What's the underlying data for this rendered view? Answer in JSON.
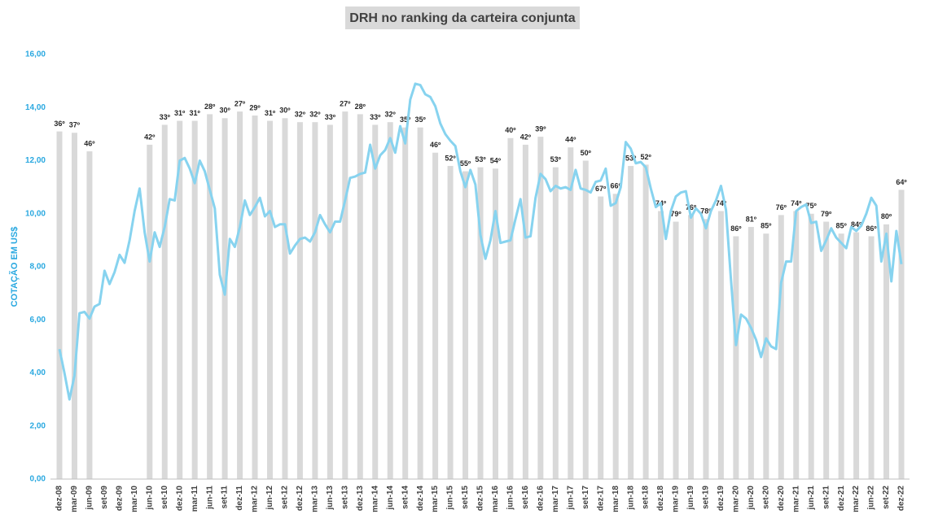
{
  "chart_data": {
    "type": "bar-line",
    "title": "DRH no ranking da carteira conjunta",
    "y_label": "COTAÇÃO EM US$",
    "ylim": [
      0,
      16
    ],
    "yticks": [
      {
        "value": 0,
        "label": "0,00"
      },
      {
        "value": 2,
        "label": "2,00"
      },
      {
        "value": 4,
        "label": "4,00"
      },
      {
        "value": 6,
        "label": "6,00"
      },
      {
        "value": 8,
        "label": "8,00"
      },
      {
        "value": 10,
        "label": "10,00"
      },
      {
        "value": 12,
        "label": "12,00"
      },
      {
        "value": 14,
        "label": "14,00"
      },
      {
        "value": 16,
        "label": "16,00"
      }
    ],
    "categories": [
      "dez-08",
      null,
      null,
      "mar-09",
      null,
      null,
      "jun-09",
      null,
      null,
      "set-09",
      null,
      null,
      "dez-09",
      null,
      null,
      "mar-10",
      null,
      null,
      "jun-10",
      null,
      null,
      "set-10",
      null,
      null,
      "dez-10",
      null,
      null,
      "mar-11",
      null,
      null,
      "jun-11",
      null,
      null,
      "set-11",
      null,
      null,
      "dez-11",
      null,
      null,
      "mar-12",
      null,
      null,
      "jun-12",
      null,
      null,
      "set-12",
      null,
      null,
      "dez-12",
      null,
      null,
      "mar-13",
      null,
      null,
      "jun-13",
      null,
      null,
      "set-13",
      null,
      null,
      "dez-13",
      null,
      null,
      "mar-14",
      null,
      null,
      "jun-14",
      null,
      null,
      "set-14",
      null,
      null,
      "dez-14",
      null,
      null,
      "mar-15",
      null,
      null,
      "jun-15",
      null,
      null,
      "set-15",
      null,
      null,
      "dez-15",
      null,
      null,
      "mar-16",
      null,
      null,
      "jun-16",
      null,
      null,
      "set-16",
      null,
      null,
      "dez-16",
      null,
      null,
      "mar-17",
      null,
      null,
      "jun-17",
      null,
      null,
      "set-17",
      null,
      null,
      "dez-17",
      null,
      null,
      "mar-18",
      null,
      null,
      "jun-18",
      null,
      null,
      "set-18",
      null,
      null,
      "dez-18",
      null,
      null,
      "mar-19",
      null,
      null,
      "jun-19",
      null,
      null,
      "set-19",
      null,
      null,
      "dez-19",
      null,
      null,
      "mar-20",
      null,
      null,
      "jun-20",
      null,
      null,
      "set-20",
      null,
      null,
      "dez-20",
      null,
      null,
      "mar-21",
      null,
      null,
      "jun-21",
      null,
      null,
      "set-21",
      null,
      null,
      "dez-21",
      null,
      null,
      "mar-22",
      null,
      null,
      "jun-22",
      null,
      null,
      "set-22",
      null,
      null,
      "dez-22"
    ],
    "series": [
      {
        "type": "bar",
        "color": "#d9d9d9",
        "values": [
          13.1,
          null,
          null,
          13.05,
          null,
          null,
          12.35,
          null,
          null,
          null,
          null,
          null,
          null,
          null,
          null,
          null,
          null,
          null,
          12.6,
          null,
          null,
          13.35,
          null,
          null,
          13.5,
          null,
          null,
          13.5,
          null,
          null,
          13.75,
          null,
          null,
          13.6,
          null,
          null,
          13.85,
          null,
          null,
          13.7,
          null,
          null,
          13.5,
          null,
          null,
          13.6,
          null,
          null,
          13.45,
          null,
          null,
          13.45,
          null,
          null,
          13.35,
          null,
          null,
          13.85,
          null,
          null,
          13.75,
          null,
          null,
          13.35,
          null,
          null,
          13.45,
          null,
          null,
          13.25,
          null,
          null,
          13.25,
          null,
          null,
          12.3,
          null,
          null,
          11.8,
          null,
          null,
          11.6,
          null,
          null,
          11.75,
          null,
          null,
          11.7,
          null,
          null,
          12.85,
          null,
          null,
          12.6,
          null,
          null,
          12.9,
          null,
          null,
          11.75,
          null,
          null,
          12.5,
          null,
          null,
          12.0,
          null,
          null,
          10.65,
          null,
          null,
          10.75,
          null,
          null,
          11.8,
          null,
          null,
          11.85,
          null,
          null,
          10.1,
          null,
          null,
          9.7,
          null,
          null,
          9.95,
          null,
          null,
          9.8,
          null,
          null,
          10.1,
          null,
          null,
          9.15,
          null,
          null,
          9.5,
          null,
          null,
          9.25,
          null,
          null,
          9.95,
          null,
          null,
          10.1,
          null,
          null,
          10.0,
          null,
          null,
          9.7,
          null,
          null,
          9.25,
          null,
          null,
          9.3,
          null,
          null,
          9.15,
          null,
          null,
          9.6,
          null,
          null,
          10.9
        ],
        "labels": [
          "36º",
          null,
          null,
          "37º",
          null,
          null,
          "46º",
          null,
          null,
          null,
          null,
          null,
          null,
          null,
          null,
          null,
          null,
          null,
          "42º",
          null,
          null,
          "33º",
          null,
          null,
          "31º",
          null,
          null,
          "31º",
          null,
          null,
          "28º",
          null,
          null,
          "30º",
          null,
          null,
          "27º",
          null,
          null,
          "29º",
          null,
          null,
          "31º",
          null,
          null,
          "30º",
          null,
          null,
          "32º",
          null,
          null,
          "32º",
          null,
          null,
          "33º",
          null,
          null,
          "27º",
          null,
          null,
          "28º",
          null,
          null,
          "33º",
          null,
          null,
          "32º",
          null,
          null,
          "35º",
          null,
          null,
          "35º",
          null,
          null,
          "46º",
          null,
          null,
          "52º",
          null,
          null,
          "55º",
          null,
          null,
          "53º",
          null,
          null,
          "54º",
          null,
          null,
          "40º",
          null,
          null,
          "42º",
          null,
          null,
          "39º",
          null,
          null,
          "53º",
          null,
          null,
          "44º",
          null,
          null,
          "50º",
          null,
          null,
          "67º",
          null,
          null,
          "66º",
          null,
          null,
          "53º",
          null,
          null,
          "52º",
          null,
          null,
          "74º",
          null,
          null,
          "79º",
          null,
          null,
          "76º",
          null,
          null,
          "78º",
          null,
          null,
          "74º",
          null,
          null,
          "86º",
          null,
          null,
          "81º",
          null,
          null,
          "85º",
          null,
          null,
          "76º",
          null,
          null,
          "74º",
          null,
          null,
          "75º",
          null,
          null,
          "79º",
          null,
          null,
          "85º",
          null,
          null,
          "84º",
          null,
          null,
          "86º",
          null,
          null,
          "80º",
          null,
          null,
          "64º"
        ]
      },
      {
        "type": "line",
        "color": "#87d3ef",
        "values": [
          4.9,
          4.0,
          3.0,
          3.9,
          6.25,
          6.3,
          6.05,
          6.5,
          6.6,
          7.85,
          7.35,
          7.8,
          8.45,
          8.15,
          9.0,
          10.1,
          10.95,
          9.3,
          8.2,
          9.3,
          8.75,
          9.5,
          10.55,
          10.5,
          12.0,
          12.1,
          11.7,
          11.15,
          12.0,
          11.6,
          10.9,
          10.2,
          7.7,
          6.95,
          9.05,
          8.75,
          9.5,
          10.5,
          9.95,
          10.25,
          10.6,
          9.9,
          10.1,
          9.5,
          9.6,
          9.6,
          8.5,
          8.8,
          9.05,
          9.1,
          8.95,
          9.3,
          9.95,
          9.6,
          9.3,
          9.7,
          9.7,
          10.5,
          11.35,
          11.4,
          11.5,
          11.55,
          12.6,
          11.7,
          12.2,
          12.4,
          12.85,
          12.3,
          13.3,
          12.65,
          14.3,
          14.9,
          14.85,
          14.5,
          14.4,
          14.05,
          13.4,
          13.0,
          12.75,
          12.55,
          11.6,
          11.0,
          11.65,
          11.1,
          9.2,
          8.3,
          9.0,
          10.1,
          8.9,
          8.95,
          9.0,
          9.8,
          10.55,
          9.1,
          9.15,
          10.6,
          11.5,
          11.3,
          10.85,
          11.05,
          10.95,
          11.0,
          10.9,
          11.65,
          10.95,
          10.9,
          10.8,
          11.2,
          11.25,
          11.7,
          10.3,
          10.4,
          11.0,
          12.7,
          12.45,
          11.9,
          11.95,
          11.75,
          10.95,
          10.25,
          10.4,
          9.05,
          10.1,
          10.65,
          10.8,
          10.85,
          9.85,
          10.2,
          10.0,
          9.45,
          10.1,
          10.5,
          11.05,
          10.15,
          7.5,
          5.05,
          6.2,
          6.05,
          5.7,
          5.25,
          4.6,
          5.3,
          5.0,
          4.9,
          7.4,
          8.2,
          8.2,
          10.1,
          10.25,
          10.35,
          9.65,
          9.7,
          8.6,
          9.0,
          9.45,
          9.1,
          8.9,
          8.7,
          9.5,
          9.35,
          9.55,
          10.0,
          10.6,
          10.3,
          8.2,
          9.25,
          7.45,
          9.35,
          8.1
        ]
      }
    ]
  }
}
